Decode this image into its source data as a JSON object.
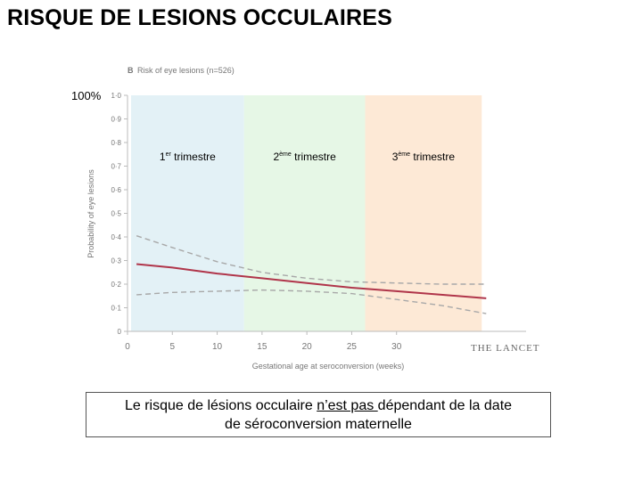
{
  "slide": {
    "title": "RISQUE DE LESIONS OCCULAIRES",
    "conclusion": {
      "part1": "Le risque  de lésions occulaire ",
      "underlined": "n’est pas ",
      "part2": "dépendant de la date",
      "line2": "de séroconversion maternelle"
    }
  },
  "chart_data": {
    "type": "line",
    "panel_label": "B",
    "title": "Risk of eye lesions (n=526)",
    "xlabel": "Gestational age at seroconversion (weeks)",
    "ylabel": "Probability of eye lesions",
    "xlim": [
      0,
      40
    ],
    "ylim": [
      0,
      1.0
    ],
    "x_ticks": [
      "0",
      "5",
      "10",
      "15",
      "20",
      "25",
      "30"
    ],
    "x_tick_values": [
      0,
      5,
      10,
      15,
      20,
      25,
      30
    ],
    "y_ticks": [
      "0",
      "0·1",
      "0·2",
      "0·3",
      "0·4",
      "0·5",
      "0·6",
      "0·7",
      "0·8",
      "0·9",
      "1·0"
    ],
    "y_tick_values": [
      0,
      0.1,
      0.2,
      0.3,
      0.4,
      0.5,
      0.6,
      0.7,
      0.8,
      0.9,
      1.0
    ],
    "y_top_annotation": "100%",
    "grid": false,
    "colors": {
      "estimate": "#b0354a",
      "ci": "#a8a8a8",
      "trimester1": "#e3f1f6",
      "trimester2": "#e6f7e6",
      "trimester3": "#fde9d6"
    },
    "trimesters": [
      {
        "label": "1",
        "sup": "er",
        "rest": " trimestre",
        "start": 0,
        "end": 13
      },
      {
        "label": "2",
        "sup": "ème",
        "rest": " trimestre",
        "start": 13,
        "end": 26.5
      },
      {
        "label": "3",
        "sup": "ème",
        "rest": " trimestre",
        "start": 26.5,
        "end": 39.5
      }
    ],
    "series": [
      {
        "role": "estimate",
        "x": [
          1,
          5,
          10,
          15,
          20,
          25,
          30,
          35,
          40
        ],
        "y": [
          0.285,
          0.27,
          0.245,
          0.225,
          0.205,
          0.185,
          0.17,
          0.155,
          0.14
        ]
      },
      {
        "role": "upper",
        "x": [
          1,
          5,
          10,
          15,
          20,
          25,
          30,
          35,
          40
        ],
        "y": [
          0.405,
          0.355,
          0.295,
          0.25,
          0.225,
          0.21,
          0.205,
          0.2,
          0.2
        ]
      },
      {
        "role": "lower",
        "x": [
          1,
          5,
          10,
          15,
          20,
          25,
          30,
          35,
          40
        ],
        "y": [
          0.155,
          0.165,
          0.17,
          0.175,
          0.17,
          0.16,
          0.135,
          0.11,
          0.075
        ]
      }
    ],
    "watermark": "THE LANCET"
  }
}
